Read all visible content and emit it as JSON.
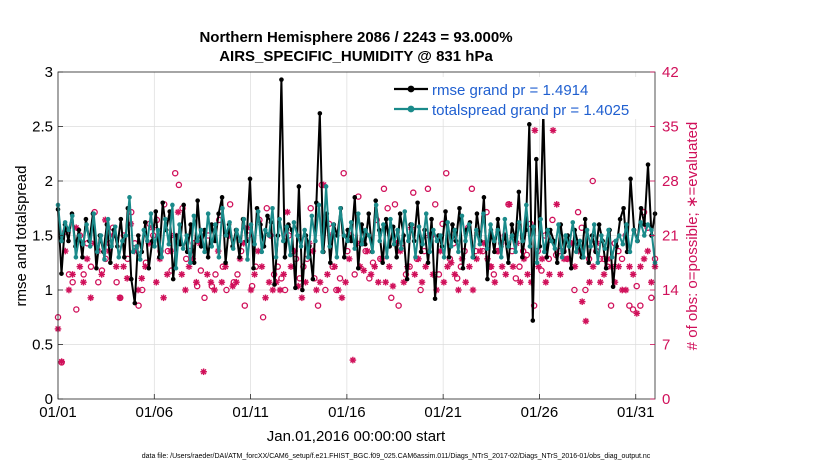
{
  "chart_data": {
    "type": "line",
    "title_line1": "Northern Hemisphere 2086 / 2243 = 93.000%",
    "title_line2": "AIRS_SPECIFIC_HUMIDITY @ 831 hPa",
    "xlabel": "Jan.01,2016 00:00:00 start",
    "ylabel": "rmse and totalspread",
    "ylabel_right": "# of obs: o=possible; ∗=evaluated",
    "x_tick_labels": [
      "01/01",
      "01/06",
      "01/11",
      "01/16",
      "01/21",
      "01/26",
      "01/31"
    ],
    "x_tick_days": [
      0,
      5,
      10,
      15,
      20,
      25,
      30
    ],
    "xlim_days": [
      0,
      31
    ],
    "ylim": [
      0,
      3
    ],
    "y_ticks": [
      0,
      0.5,
      1,
      1.5,
      2,
      2.5,
      3
    ],
    "y_tick_labels": [
      "0",
      "0.5",
      "1",
      "1.5",
      "2",
      "2.5",
      "3"
    ],
    "ylim_right": [
      0,
      42
    ],
    "y_ticks_right": [
      0,
      7,
      14,
      21,
      28,
      35,
      42
    ],
    "y_tick_labels_right": [
      "0",
      "7",
      "14",
      "21",
      "28",
      "35",
      "42"
    ],
    "legend_position": "top-right",
    "series": [
      {
        "name": "rmse grand pr = 1.4914",
        "color": "#000000",
        "marker": "dot",
        "axis": "left",
        "values": [
          1.74,
          1.15,
          1.6,
          1.45,
          1.7,
          1.4,
          1.55,
          1.3,
          1.65,
          1.45,
          1.7,
          1.2,
          1.5,
          1.35,
          1.6,
          1.25,
          1.55,
          1.4,
          1.65,
          1.3,
          1.75,
          1.1,
          0.88,
          1.5,
          1.35,
          1.62,
          1.2,
          1.45,
          1.72,
          1.3,
          1.8,
          1.55,
          1.72,
          1.1,
          1.5,
          1.42,
          1.78,
          1.35,
          1.6,
          1.25,
          1.82,
          1.4,
          1.55,
          1.3,
          1.6,
          1.45,
          1.7,
          1.85,
          1.25,
          1.6,
          1.4,
          1.55,
          1.3,
          1.65,
          1.45,
          2.02,
          1.2,
          1.75,
          1.6,
          1.4,
          1.68,
          1.62,
          1.05,
          1.5,
          2.93,
          1.3,
          1.6,
          1.55,
          1.02,
          1.95,
          1.0,
          1.5,
          1.4,
          1.1,
          1.8,
          2.62,
          1.35,
          1.7,
          1.25,
          1.6,
          1.5,
          1.75,
          1.3,
          1.55,
          1.45,
          1.85,
          1.2,
          1.6,
          1.42,
          1.7,
          1.35,
          1.82,
          1.55,
          1.25,
          1.65,
          1.4,
          1.58,
          1.3,
          1.7,
          1.5,
          1.1,
          1.6,
          1.45,
          1.8,
          1.35,
          1.55,
          1.25,
          1.65,
          0.92,
          1.5,
          1.4,
          1.72,
          1.3,
          1.6,
          1.45,
          1.75,
          1.2,
          1.55,
          1.62,
          1.3,
          1.7,
          1.45,
          1.85,
          1.1,
          1.55,
          1.35,
          1.65,
          1.4,
          1.5,
          1.25,
          1.6,
          1.45,
          1.9,
          1.3,
          1.55,
          2.52,
          0.72,
          2.2,
          1.4,
          2.65,
          1.3,
          1.55,
          1.45,
          1.25,
          1.6,
          1.35,
          1.5,
          1.2,
          1.55,
          1.42,
          1.3,
          1.65,
          1.25,
          1.5,
          1.35,
          1.6,
          1.45,
          1.2,
          1.55,
          1.03,
          1.4,
          1.65,
          1.75,
          1.35,
          2.02,
          1.55,
          1.45,
          1.75,
          1.6,
          2.15,
          1.5,
          1.7
        ]
      },
      {
        "name": "totalspread grand pr = 1.4025",
        "color": "#1a8a8a",
        "marker": "dot",
        "axis": "left",
        "values": [
          1.78,
          1.45,
          1.62,
          1.55,
          1.68,
          1.3,
          1.5,
          1.42,
          1.6,
          1.4,
          1.7,
          1.35,
          1.5,
          1.28,
          1.65,
          1.4,
          1.58,
          1.3,
          1.45,
          1.5,
          1.85,
          1.35,
          1.4,
          1.28,
          1.55,
          1.45,
          1.7,
          1.4,
          1.55,
          1.3,
          1.65,
          1.42,
          1.78,
          1.2,
          1.6,
          1.38,
          1.5,
          1.25,
          1.68,
          1.45,
          1.55,
          1.35,
          1.7,
          1.4,
          1.6,
          1.3,
          1.75,
          1.5,
          1.62,
          1.38,
          1.55,
          1.45,
          1.65,
          1.28,
          1.6,
          1.42,
          1.72,
          1.35,
          1.55,
          1.5,
          1.75,
          1.3,
          1.65,
          1.45,
          1.58,
          1.32,
          1.62,
          1.5,
          1.4,
          1.55,
          1.3,
          1.68,
          1.45,
          1.78,
          1.35,
          1.95,
          1.4,
          1.6,
          1.3,
          1.75,
          1.5,
          1.45,
          1.62,
          1.38,
          1.7,
          1.42,
          1.55,
          1.5,
          1.35,
          1.78,
          1.45,
          1.6,
          1.3,
          1.65,
          1.42,
          1.55,
          1.38,
          1.72,
          1.45,
          1.6,
          1.3,
          1.58,
          1.42,
          1.7,
          1.35,
          1.55,
          1.45,
          1.5,
          1.3,
          1.62,
          1.4,
          1.55,
          1.35,
          1.68,
          1.45,
          1.6,
          1.3,
          1.55,
          1.42,
          1.7,
          1.38,
          1.6,
          1.45,
          1.55,
          1.3,
          1.65,
          1.4,
          1.5,
          1.35,
          1.62,
          1.45,
          1.78,
          1.4,
          1.58,
          1.25,
          1.65,
          1.35,
          1.55,
          1.45,
          1.38,
          1.6,
          1.3,
          1.5,
          1.4,
          1.62,
          1.35,
          1.45,
          1.3,
          1.55,
          1.4,
          1.6,
          1.25,
          1.5,
          1.38,
          1.55,
          1.3,
          1.45,
          1.5,
          1.42,
          1.6,
          1.35,
          1.55,
          1.45,
          1.62,
          1.5,
          1.6,
          1.55,
          1.25
        ]
      }
    ],
    "obs_possible": [
      10.5,
      4.7,
      21.5,
      16,
      15,
      11.5,
      21,
      16,
      20,
      17,
      24,
      15,
      16.5,
      18,
      20,
      22,
      15,
      13,
      21,
      18,
      24,
      20,
      12,
      14,
      17.5,
      22.5,
      21,
      23,
      19,
      25,
      19,
      16.5,
      29,
      27.5,
      24.5,
      18,
      19,
      20,
      14.5,
      16.5,
      13,
      21,
      14.5,
      16,
      23,
      17,
      14,
      25,
      15,
      16,
      19,
      12,
      21,
      14.5,
      17,
      23,
      10.5,
      24.5,
      21,
      16,
      17,
      15.5,
      14,
      21,
      19,
      18,
      15.5,
      17,
      18,
      24.5,
      15.5,
      12,
      27.5,
      14,
      22.5,
      17,
      14,
      15.5,
      29,
      19,
      21,
      16,
      26,
      20,
      19,
      15.5,
      17.5,
      23,
      18,
      27,
      24.5,
      13,
      25,
      12,
      20,
      16,
      17,
      26.5,
      18,
      14,
      19,
      27,
      21,
      25,
      16,
      22.5,
      29,
      18,
      20,
      15.5,
      17,
      19,
      22,
      27,
      19,
      38,
      19,
      24,
      17,
      16,
      19,
      20,
      21,
      25,
      19,
      15.5,
      17,
      19,
      18.5,
      22.5,
      12,
      19,
      16.5,
      21,
      18,
      23,
      18.5,
      19,
      19,
      18,
      20,
      14,
      24,
      22,
      14,
      18,
      28,
      19,
      18,
      18,
      17,
      12,
      20,
      19,
      18,
      21,
      12,
      11.5,
      14.5,
      12,
      24,
      22,
      13,
      18
    ],
    "obs_evaluated": [
      9,
      4.8,
      19,
      14,
      16,
      22,
      17,
      15,
      18,
      13,
      20,
      19,
      16,
      23,
      19,
      21,
      17,
      13,
      17,
      15.5,
      22.5,
      19,
      14,
      15.5,
      17,
      20,
      22,
      15,
      18,
      13,
      16,
      19,
      21,
      24,
      16,
      14,
      17,
      18,
      15,
      20,
      3.5,
      16,
      15,
      14,
      19,
      15,
      17,
      21,
      14.5,
      15,
      18,
      20,
      22,
      14,
      16,
      19,
      17,
      13,
      15,
      14,
      15,
      14,
      16,
      24,
      17,
      19,
      14.5,
      13,
      15,
      20,
      19,
      14,
      15,
      27.5,
      16,
      21,
      17,
      14,
      13,
      15,
      18,
      5,
      20,
      17,
      16.5,
      19,
      16,
      17,
      15,
      18,
      15,
      17,
      14.5,
      20,
      19,
      15,
      17,
      22,
      16,
      18,
      15,
      17,
      21,
      16,
      14,
      19,
      15,
      17,
      17.5,
      16,
      14,
      18,
      15,
      17,
      14,
      18,
      19,
      20,
      18,
      17,
      15,
      19,
      17,
      16,
      25,
      17,
      20,
      15,
      18,
      16,
      15,
      34.5,
      17,
      18,
      15,
      16,
      34.5,
      25,
      16,
      18,
      18,
      20,
      17,
      19,
      12.5,
      10,
      15,
      17,
      20,
      15,
      16,
      18,
      17,
      15,
      17,
      14,
      14,
      17,
      16,
      11,
      17,
      18,
      19,
      15,
      17
    ]
  },
  "footer": {
    "datafile": "data file: /Users/raeder/DAI/ATM_forcXX/CAM6_setup/f.e21.FHIST_BGC.f09_025.CAM6assim.011/Diags_NTrS_2017-02/Diags_NTrS_2016-01/obs_diag_output.nc"
  }
}
